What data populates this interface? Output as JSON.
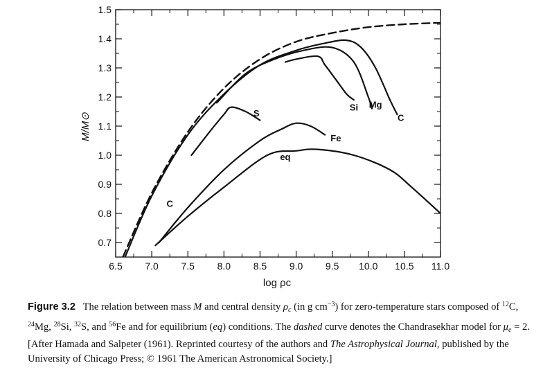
{
  "chart_data": {
    "type": "line",
    "title": "",
    "xlabel": "log ρc",
    "ylabel": "M/M⊙",
    "xlim": [
      6.5,
      11.0
    ],
    "ylim": [
      0.65,
      1.5
    ],
    "x_ticks": [
      "6.5",
      "7.0",
      "7.5",
      "8.0",
      "8.5",
      "9.0",
      "9.5",
      "10.0",
      "10.5",
      "11.0"
    ],
    "y_ticks": [
      "0.7",
      "0.8",
      "0.9",
      "1.0",
      "1.1",
      "1.2",
      "1.3",
      "1.4",
      "1.5"
    ],
    "grid": false,
    "series": [
      {
        "name": "",
        "style": "dashed",
        "x": [
          6.6,
          7.0,
          7.5,
          8.0,
          8.5,
          9.0,
          9.5,
          10.0,
          10.5,
          11.0
        ],
        "y": [
          0.65,
          0.87,
          1.08,
          1.23,
          1.33,
          1.39,
          1.42,
          1.44,
          1.45,
          1.455
        ]
      },
      {
        "name": "C",
        "style": "solid",
        "x": [
          6.63,
          7.0,
          7.5,
          8.0,
          8.5,
          9.0,
          9.4,
          9.7,
          9.9,
          10.1,
          10.3,
          10.4
        ],
        "y": [
          0.65,
          0.86,
          1.07,
          1.21,
          1.31,
          1.36,
          1.385,
          1.395,
          1.37,
          1.3,
          1.19,
          1.14
        ]
      },
      {
        "name": "Mg",
        "style": "solid",
        "x": [
          7.9,
          8.3,
          8.7,
          9.1,
          9.5,
          9.8,
          10.0,
          10.05
        ],
        "y": [
          1.18,
          1.28,
          1.33,
          1.36,
          1.37,
          1.32,
          1.2,
          1.16
        ]
      },
      {
        "name": "Si",
        "style": "solid",
        "x": [
          8.85,
          9.0,
          9.3,
          9.4,
          9.55,
          9.7,
          9.8
        ],
        "y": [
          1.32,
          1.33,
          1.34,
          1.31,
          1.26,
          1.21,
          1.19
        ]
      },
      {
        "name": "S",
        "style": "solid",
        "x": [
          7.55,
          7.8,
          8.0,
          8.1,
          8.3,
          8.5
        ],
        "y": [
          1.0,
          1.08,
          1.14,
          1.165,
          1.15,
          1.12
        ]
      },
      {
        "name": "Fe",
        "style": "solid",
        "x": [
          7.1,
          7.5,
          8.0,
          8.5,
          8.8,
          9.0,
          9.2,
          9.4
        ],
        "y": [
          0.7,
          0.82,
          0.95,
          1.05,
          1.09,
          1.11,
          1.1,
          1.07
        ]
      },
      {
        "name": "eq",
        "style": "solid",
        "x": [
          7.05,
          7.5,
          8.0,
          8.6,
          9.0,
          9.3,
          9.8,
          10.3,
          10.6,
          11.0
        ],
        "y": [
          0.69,
          0.79,
          0.89,
          1.0,
          1.015,
          1.02,
          1.0,
          0.95,
          0.89,
          0.8
        ]
      }
    ],
    "annotations": [
      {
        "text": "S",
        "x": 8.45,
        "y": 1.145
      },
      {
        "text": "Si",
        "x": 9.8,
        "y": 1.165
      },
      {
        "text": "Mg",
        "x": 10.1,
        "y": 1.175
      },
      {
        "text": "C",
        "x": 10.45,
        "y": 1.13
      },
      {
        "text": "Fe",
        "x": 9.55,
        "y": 1.06
      },
      {
        "text": "eq",
        "x": 8.85,
        "y": 0.995
      },
      {
        "text": "C",
        "x": 7.25,
        "y": 0.835
      }
    ]
  },
  "caption": {
    "figure_number": "Figure 3.2",
    "p1": "The relation between mass ",
    "p2": " and central density ",
    "p3": " (in g cm",
    "p4": ") for zero-temperature stars composed of ",
    "p5": "C, ",
    "p6": "Mg, ",
    "p7": "Si, ",
    "p8": "S, and ",
    "p9": "Fe and for equilibrium (",
    "p10": ") conditions. The ",
    "p11": " curve denotes the Chandrasekhar model for ",
    "p12": " = 2. [After Hamada and Salpeter (1961). Reprinted courtesy of the authors and ",
    "p13": ", published by the University of Chicago Press; © 1961 The American Astronomical Society.]",
    "sym_M": "M",
    "sym_rho": "ρ",
    "sym_c": "c",
    "exp_neg3": "−3",
    "iso_C": "12",
    "iso_Mg": "24",
    "iso_Si": "28",
    "iso_S": "32",
    "iso_Fe": "56",
    "eq_word": "eq",
    "dashed_word": "dashed",
    "sym_mu": "μ",
    "sym_e": "e",
    "journal": "The Astrophysical Journal"
  }
}
